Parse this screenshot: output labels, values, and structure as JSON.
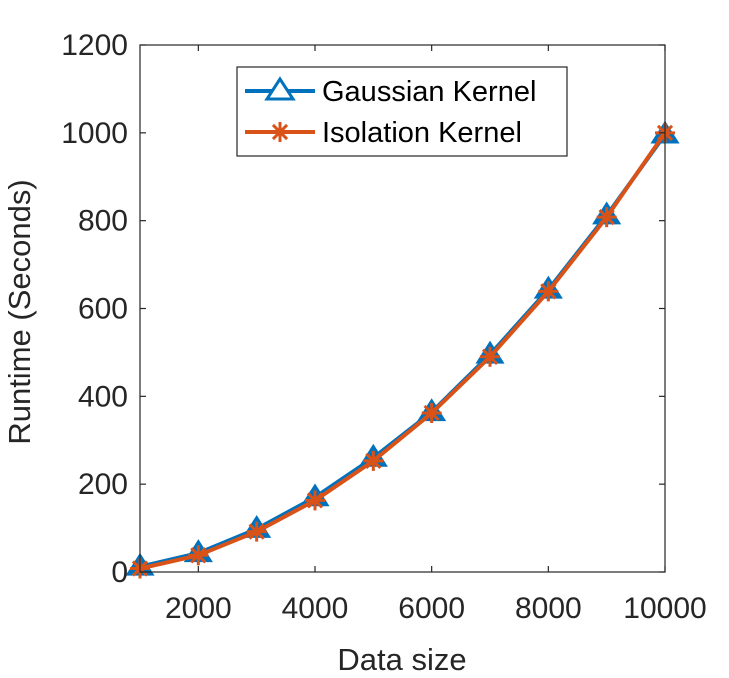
{
  "chart_data": {
    "type": "line",
    "xlabel": "Data size",
    "ylabel": "Runtime (Seconds)",
    "xlim": [
      1000,
      10000
    ],
    "ylim": [
      0,
      1200
    ],
    "x_ticks": [
      2000,
      4000,
      6000,
      8000,
      10000
    ],
    "y_ticks": [
      0,
      200,
      400,
      600,
      800,
      1000,
      1200
    ],
    "grid": false,
    "legend_position": "top-center",
    "x": [
      1000,
      2000,
      3000,
      4000,
      5000,
      6000,
      7000,
      8000,
      9000,
      10000
    ],
    "series": [
      {
        "name": "Gaussian Kernel",
        "color": "#0072BD",
        "marker": "triangle",
        "values": [
          12,
          43,
          98,
          170,
          260,
          364,
          495,
          643,
          812,
          996
        ]
      },
      {
        "name": "Isolation Kernel",
        "color": "#D95319",
        "marker": "asterisk",
        "values": [
          8,
          38,
          92,
          163,
          253,
          362,
          490,
          639,
          808,
          1000
        ]
      }
    ]
  }
}
